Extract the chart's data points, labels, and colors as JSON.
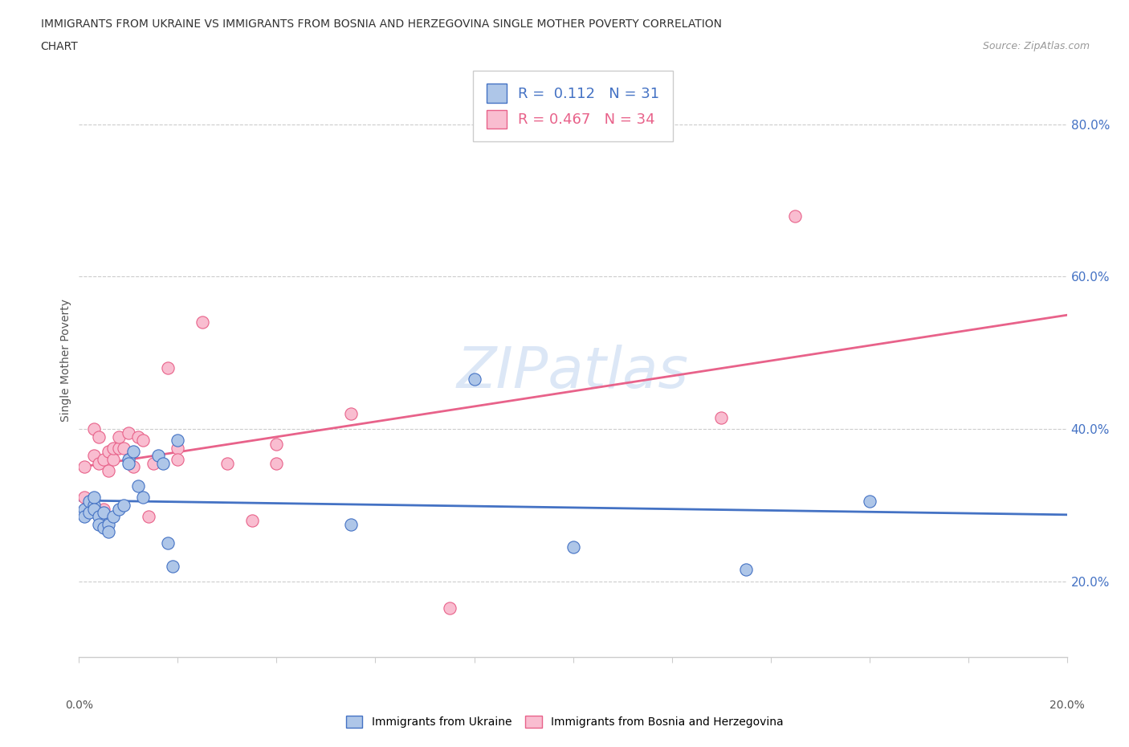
{
  "title_line1": "IMMIGRANTS FROM UKRAINE VS IMMIGRANTS FROM BOSNIA AND HERZEGOVINA SINGLE MOTHER POVERTY CORRELATION",
  "title_line2": "CHART",
  "source": "Source: ZipAtlas.com",
  "ylabel": "Single Mother Poverty",
  "y_ticks": [
    "20.0%",
    "40.0%",
    "60.0%",
    "80.0%"
  ],
  "y_tick_vals": [
    0.2,
    0.4,
    0.6,
    0.8
  ],
  "xlim": [
    0.0,
    0.2
  ],
  "ylim": [
    0.1,
    0.88
  ],
  "ukraine_color": "#aec6e8",
  "bosnia_color": "#f9bdd0",
  "ukraine_edge_color": "#4472c4",
  "bosnia_edge_color": "#e8628a",
  "ukraine_line_color": "#4472c4",
  "bosnia_line_color": "#e8628a",
  "ukraine_R": 0.112,
  "ukraine_N": 31,
  "bosnia_R": 0.467,
  "bosnia_N": 34,
  "watermark": "ZIPatlas",
  "ukraine_x": [
    0.001,
    0.001,
    0.002,
    0.002,
    0.003,
    0.003,
    0.003,
    0.004,
    0.004,
    0.005,
    0.005,
    0.006,
    0.006,
    0.007,
    0.008,
    0.009,
    0.01,
    0.01,
    0.011,
    0.012,
    0.013,
    0.016,
    0.017,
    0.018,
    0.019,
    0.02,
    0.055,
    0.08,
    0.1,
    0.135,
    0.16
  ],
  "ukraine_y": [
    0.295,
    0.285,
    0.305,
    0.29,
    0.3,
    0.31,
    0.295,
    0.285,
    0.275,
    0.27,
    0.29,
    0.275,
    0.265,
    0.285,
    0.295,
    0.3,
    0.36,
    0.355,
    0.37,
    0.325,
    0.31,
    0.365,
    0.355,
    0.25,
    0.22,
    0.385,
    0.275,
    0.465,
    0.245,
    0.215,
    0.305
  ],
  "bosnia_x": [
    0.001,
    0.001,
    0.002,
    0.003,
    0.003,
    0.004,
    0.004,
    0.005,
    0.005,
    0.006,
    0.006,
    0.007,
    0.007,
    0.008,
    0.008,
    0.009,
    0.01,
    0.011,
    0.012,
    0.013,
    0.014,
    0.015,
    0.018,
    0.02,
    0.02,
    0.025,
    0.03,
    0.035,
    0.04,
    0.04,
    0.055,
    0.075,
    0.13,
    0.145
  ],
  "bosnia_y": [
    0.31,
    0.35,
    0.295,
    0.365,
    0.4,
    0.355,
    0.39,
    0.295,
    0.36,
    0.37,
    0.345,
    0.36,
    0.375,
    0.375,
    0.39,
    0.375,
    0.395,
    0.35,
    0.39,
    0.385,
    0.285,
    0.355,
    0.48,
    0.375,
    0.36,
    0.54,
    0.355,
    0.28,
    0.38,
    0.355,
    0.42,
    0.165,
    0.415,
    0.68
  ]
}
